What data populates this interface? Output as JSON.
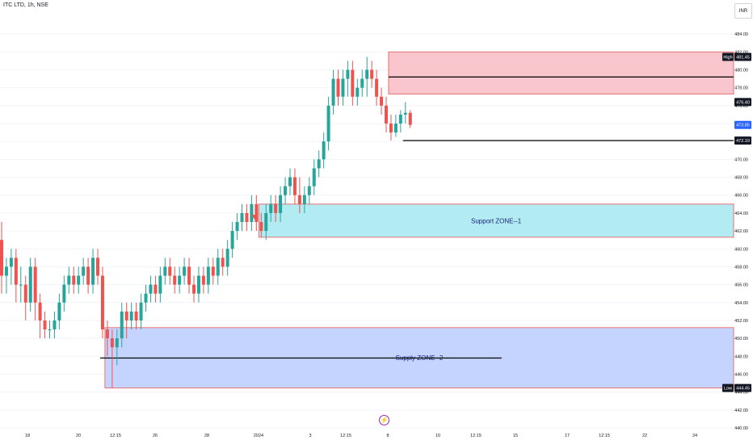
{
  "header": {
    "title": "ITC LTD, 1h, NSE"
  },
  "currency": "INR",
  "colors": {
    "up": "#26a69a",
    "down": "#ef5350",
    "grid": "#f0f3fa",
    "axis_text": "#131722"
  },
  "chart_data": {
    "type": "candlestick",
    "ylim": [
      440,
      486
    ],
    "y_ticks": [
      "440.00",
      "442.00",
      "444.00",
      "446.00",
      "448.00",
      "450.00",
      "452.00",
      "454.00",
      "456.00",
      "458.00",
      "460.00",
      "462.00",
      "464.00",
      "466.00",
      "468.00",
      "470.00",
      "472.00",
      "474.00",
      "476.00",
      "478.00",
      "480.00",
      "482.00",
      "484.00"
    ],
    "x_ticks": [
      "18",
      "20",
      "12:15",
      "26",
      "28",
      "2024",
      "3",
      "12:15",
      "8",
      "10",
      "12:15",
      "15",
      "17",
      "12:15",
      "22",
      "24"
    ],
    "price_labels": [
      {
        "label": "High",
        "value": "481.45",
        "price": 481.45,
        "style": "dark"
      },
      {
        "label": "",
        "value": "476.40",
        "price": 476.4,
        "style": "dark"
      },
      {
        "label": "",
        "value": "473.85",
        "price": 473.85,
        "style": "blue"
      },
      {
        "label": "",
        "value": "472.10",
        "price": 472.1,
        "style": "dark"
      },
      {
        "label": "Low",
        "value": "444.45",
        "price": 444.45,
        "style": "dark"
      }
    ],
    "zones": [
      {
        "name": "Support  ZONE--1",
        "top": 465.0,
        "bottom": 461.3,
        "from_index": 54,
        "fill": "#b2ebf2",
        "border": "#e57373",
        "text_color": "#1a237e"
      },
      {
        "name": "Supply  ZONE--2",
        "top": 451.2,
        "bottom": 444.45,
        "from_index": 22,
        "fill": "#c5d4ff",
        "border": "#e57373",
        "text_color": "#1a237e"
      },
      {
        "name": "",
        "top": 482.0,
        "bottom": 477.3,
        "from_index": 81,
        "fill": "#f8c6cc",
        "border": "#e57373",
        "text_color": "#1a237e"
      }
    ],
    "hlines": [
      {
        "price": 479.2,
        "from_index": 81
      },
      {
        "price": 472.1,
        "from_index": 84
      },
      {
        "price": 447.8,
        "from_index": 21,
        "to_index": 104
      }
    ],
    "series": [
      {
        "type": "ohlc",
        "values": [
          [
            461,
            463,
            455,
            457
          ],
          [
            457,
            459,
            455,
            458
          ],
          [
            458,
            460,
            456,
            459
          ],
          [
            459,
            460,
            454,
            456
          ],
          [
            456,
            458,
            454,
            456
          ],
          [
            456,
            457,
            452,
            454
          ],
          [
            454,
            459,
            453,
            458
          ],
          [
            458,
            459,
            452,
            454
          ],
          [
            454,
            455,
            450,
            452
          ],
          [
            452,
            453,
            450,
            451
          ],
          [
            451,
            452,
            450,
            451
          ],
          [
            451,
            453,
            450,
            452
          ],
          [
            452,
            455,
            451,
            454
          ],
          [
            454,
            457,
            453,
            456
          ],
          [
            456,
            458,
            455,
            457
          ],
          [
            457,
            458,
            455,
            456
          ],
          [
            456,
            458,
            455,
            457
          ],
          [
            457,
            459,
            456,
            458
          ],
          [
            458,
            459,
            455,
            456
          ],
          [
            456,
            460,
            455,
            459
          ],
          [
            459,
            460,
            456,
            457
          ],
          [
            457,
            458,
            450,
            451
          ],
          [
            451,
            452,
            448,
            450
          ],
          [
            450,
            451,
            444.45,
            449
          ],
          [
            449,
            451,
            447,
            450
          ],
          [
            450,
            454,
            449,
            453
          ],
          [
            453,
            454,
            450,
            452
          ],
          [
            452,
            454,
            451,
            453
          ],
          [
            453,
            454,
            451,
            452
          ],
          [
            452,
            455,
            451,
            454
          ],
          [
            454,
            456,
            453,
            455
          ],
          [
            455,
            457,
            454,
            456
          ],
          [
            456,
            457,
            454,
            455
          ],
          [
            455,
            458,
            454,
            457
          ],
          [
            457,
            459,
            456,
            458
          ],
          [
            458,
            459,
            456,
            457
          ],
          [
            457,
            458,
            455,
            456
          ],
          [
            456,
            458,
            455,
            457
          ],
          [
            457,
            459,
            456,
            458
          ],
          [
            458,
            459,
            455,
            456
          ],
          [
            456,
            457,
            454,
            455
          ],
          [
            455,
            458,
            454,
            457
          ],
          [
            457,
            458,
            455,
            456
          ],
          [
            456,
            459,
            455,
            458
          ],
          [
            458,
            459,
            456,
            457
          ],
          [
            457,
            460,
            456,
            459
          ],
          [
            459,
            460,
            457,
            458
          ],
          [
            458,
            461,
            457,
            460
          ],
          [
            460,
            463,
            459,
            462
          ],
          [
            462,
            464,
            461,
            463
          ],
          [
            463,
            465,
            462,
            464
          ],
          [
            464,
            465,
            462,
            463
          ],
          [
            463,
            466,
            462,
            465
          ],
          [
            465,
            466,
            462,
            463
          ],
          [
            463,
            464,
            461.3,
            462
          ],
          [
            462,
            465,
            461,
            464
          ],
          [
            464,
            466,
            463,
            465
          ],
          [
            465,
            466,
            463,
            464
          ],
          [
            464,
            467,
            463,
            466
          ],
          [
            466,
            468,
            465,
            467
          ],
          [
            467,
            469,
            466,
            468
          ],
          [
            468,
            469,
            465,
            466
          ],
          [
            466,
            468,
            464,
            465
          ],
          [
            465,
            467,
            464,
            466
          ],
          [
            466,
            468,
            465,
            467
          ],
          [
            467,
            470,
            466,
            469
          ],
          [
            469,
            471,
            468,
            470
          ],
          [
            470,
            473,
            469,
            472
          ],
          [
            472,
            477,
            471,
            476
          ],
          [
            476,
            480,
            475,
            479
          ],
          [
            479,
            480,
            476,
            477
          ],
          [
            477,
            480,
            476,
            479
          ],
          [
            479,
            481,
            477,
            480
          ],
          [
            480,
            481,
            476,
            477
          ],
          [
            477,
            479,
            476,
            478
          ],
          [
            478,
            480,
            477,
            479
          ],
          [
            479,
            481.45,
            477,
            480
          ],
          [
            480,
            481,
            478,
            479
          ],
          [
            479,
            480,
            476,
            477
          ],
          [
            477,
            478,
            475,
            476
          ],
          [
            476,
            477,
            473,
            474
          ],
          [
            474,
            475,
            472.1,
            473
          ],
          [
            473,
            475,
            472.5,
            474
          ],
          [
            474,
            475.5,
            473,
            475
          ],
          [
            475,
            476.4,
            474,
            475.2
          ],
          [
            475.2,
            475.5,
            473.5,
            473.85
          ]
        ]
      }
    ]
  }
}
